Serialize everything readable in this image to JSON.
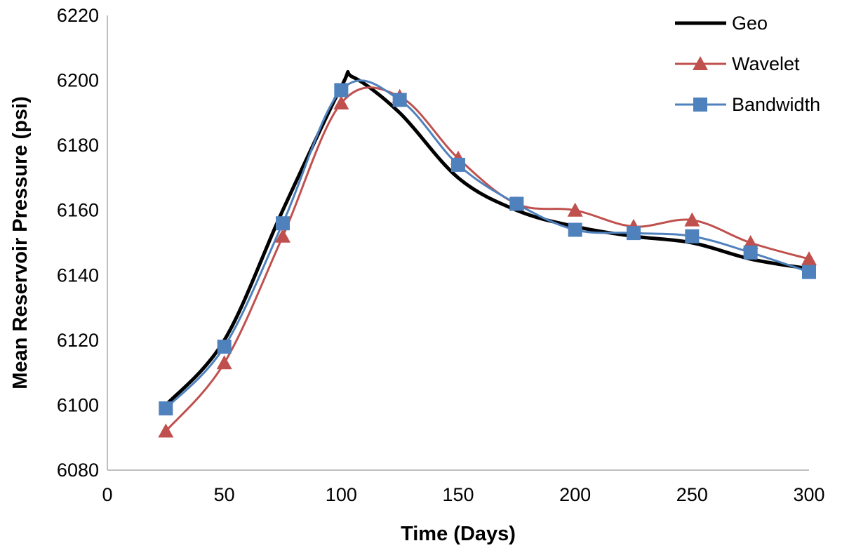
{
  "chart_data": {
    "type": "line",
    "title": "",
    "xlabel": "Time (Days)",
    "ylabel": "Mean Reservoir Pressure (psi)",
    "xlim": [
      0,
      300
    ],
    "ylim": [
      6080,
      6220
    ],
    "xticks": [
      0,
      50,
      100,
      150,
      200,
      250,
      300
    ],
    "yticks": [
      6080,
      6100,
      6120,
      6140,
      6160,
      6180,
      6200,
      6220
    ],
    "grid": false,
    "legend_position": "top-right",
    "series": [
      {
        "name": "Geo",
        "color": "#000000",
        "marker": "none",
        "points": [
          [
            25,
            6100
          ],
          [
            50,
            6120
          ],
          [
            75,
            6160
          ],
          [
            100,
            6198
          ],
          [
            105,
            6201
          ],
          [
            125,
            6190
          ],
          [
            150,
            6170
          ],
          [
            175,
            6160
          ],
          [
            200,
            6155
          ],
          [
            225,
            6152
          ],
          [
            250,
            6150
          ],
          [
            275,
            6145
          ],
          [
            300,
            6142
          ]
        ]
      },
      {
        "name": "Wavelet",
        "color": "#C0504D",
        "marker": "triangle",
        "points": [
          [
            25,
            6092
          ],
          [
            50,
            6113
          ],
          [
            75,
            6152
          ],
          [
            100,
            6193
          ],
          [
            125,
            6195
          ],
          [
            150,
            6176
          ],
          [
            175,
            6162
          ],
          [
            200,
            6160
          ],
          [
            225,
            6155
          ],
          [
            250,
            6157
          ],
          [
            275,
            6150
          ],
          [
            300,
            6145
          ]
        ]
      },
      {
        "name": "Bandwidth",
        "color": "#4F81BD",
        "marker": "square",
        "points": [
          [
            25,
            6099
          ],
          [
            50,
            6118
          ],
          [
            75,
            6156
          ],
          [
            100,
            6197
          ],
          [
            125,
            6194
          ],
          [
            150,
            6174
          ],
          [
            175,
            6162
          ],
          [
            200,
            6154
          ],
          [
            225,
            6153
          ],
          [
            250,
            6152
          ],
          [
            275,
            6147
          ],
          [
            300,
            6141
          ]
        ]
      }
    ]
  }
}
